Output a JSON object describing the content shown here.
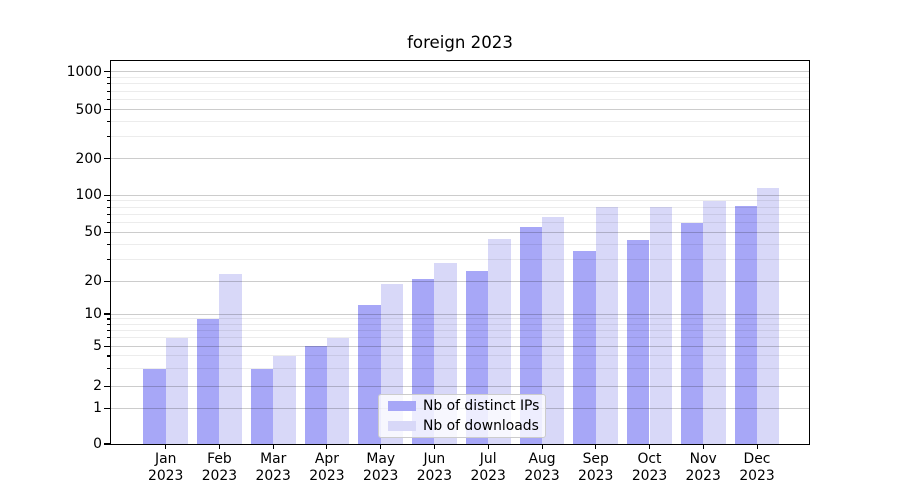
{
  "chart_data": {
    "type": "bar",
    "title": "foreign 2023",
    "xlabel": "",
    "ylabel": "",
    "yscale": "symlog",
    "yticks": [
      "0",
      "1",
      "2",
      "5",
      "10",
      "20",
      "50",
      "100",
      "200",
      "500",
      "1000"
    ],
    "ylim": [
      0,
      1200
    ],
    "grid": "horizontal major and minor",
    "legend_position": "lower center",
    "categories": [
      {
        "month": "Jan",
        "year": "2023"
      },
      {
        "month": "Feb",
        "year": "2023"
      },
      {
        "month": "Mar",
        "year": "2023"
      },
      {
        "month": "Apr",
        "year": "2023"
      },
      {
        "month": "May",
        "year": "2023"
      },
      {
        "month": "Jun",
        "year": "2023"
      },
      {
        "month": "Jul",
        "year": "2023"
      },
      {
        "month": "Aug",
        "year": "2023"
      },
      {
        "month": "Sep",
        "year": "2023"
      },
      {
        "month": "Oct",
        "year": "2023"
      },
      {
        "month": "Nov",
        "year": "2023"
      },
      {
        "month": "Dec",
        "year": "2023"
      }
    ],
    "series": [
      {
        "name": "Nb of distinct IPs",
        "color": "#a7a7f7",
        "values": [
          3,
          9,
          3,
          5,
          12,
          21,
          24,
          55,
          35,
          43,
          60,
          82
        ]
      },
      {
        "name": "Nb of downloads",
        "color": "#d8d8f8",
        "values": [
          6,
          23,
          4,
          6,
          19,
          28,
          44,
          66,
          80,
          80,
          90,
          115
        ]
      }
    ]
  },
  "palette": {
    "background": "#ffffff",
    "spine": "#000000",
    "text": "#000000",
    "grid_major": "#cccccc",
    "grid_minor": "#ececec",
    "legend_border": "#cccccc"
  }
}
